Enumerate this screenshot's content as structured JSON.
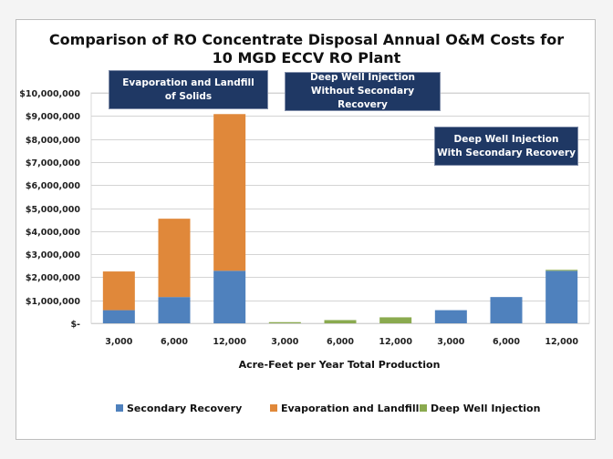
{
  "chart_data": {
    "type": "bar",
    "stacked": true,
    "title": [
      "Comparison of RO Concentrate Disposal Annual O&M Costs for",
      "10 MGD ECCV RO Plant"
    ],
    "xlabel": "Acre-Feet per Year Total Production",
    "ylabel": "",
    "ylim": [
      0,
      10000000
    ],
    "yticks": [
      0,
      1000000,
      2000000,
      3000000,
      4000000,
      5000000,
      6000000,
      7000000,
      8000000,
      9000000,
      10000000
    ],
    "ytick_labels": [
      "$-",
      "$1,000,000",
      "$2,000,000",
      "$3,000,000",
      "$4,000,000",
      "$5,000,000",
      "$6,000,000",
      "$7,000,000",
      "$8,000,000",
      "$9,000,000",
      "$10,000,000"
    ],
    "grid": true,
    "categories": [
      "3,000",
      "6,000",
      "12,000",
      "3,000",
      "6,000",
      "12,000",
      "3,000",
      "6,000",
      "12,000"
    ],
    "series": [
      {
        "name": "Secondary Recovery",
        "color": "#4f81bd",
        "values": [
          570000,
          1140000,
          2280000,
          0,
          0,
          0,
          570000,
          1140000,
          2280000
        ]
      },
      {
        "name": "Evaporation and Landfill",
        "color": "#e0883a",
        "values": [
          1680000,
          3400000,
          6800000,
          0,
          0,
          0,
          0,
          0,
          0
        ]
      },
      {
        "name": "Deep Well Injection",
        "color": "#8aaa4f",
        "values": [
          0,
          0,
          0,
          50000,
          140000,
          260000,
          0,
          0,
          40000
        ]
      }
    ],
    "legend_position": "bottom",
    "annotations": [
      {
        "lines": [
          "Evaporation and Landfill",
          "of Solids"
        ],
        "applies_to": "categories 1-3"
      },
      {
        "lines": [
          "Deep Well Injection",
          "Without Secondary Recovery"
        ],
        "applies_to": "categories 4-6"
      },
      {
        "lines": [
          "Deep Well Injection",
          "With Secondary Recovery"
        ],
        "applies_to": "categories 7-9"
      }
    ]
  }
}
